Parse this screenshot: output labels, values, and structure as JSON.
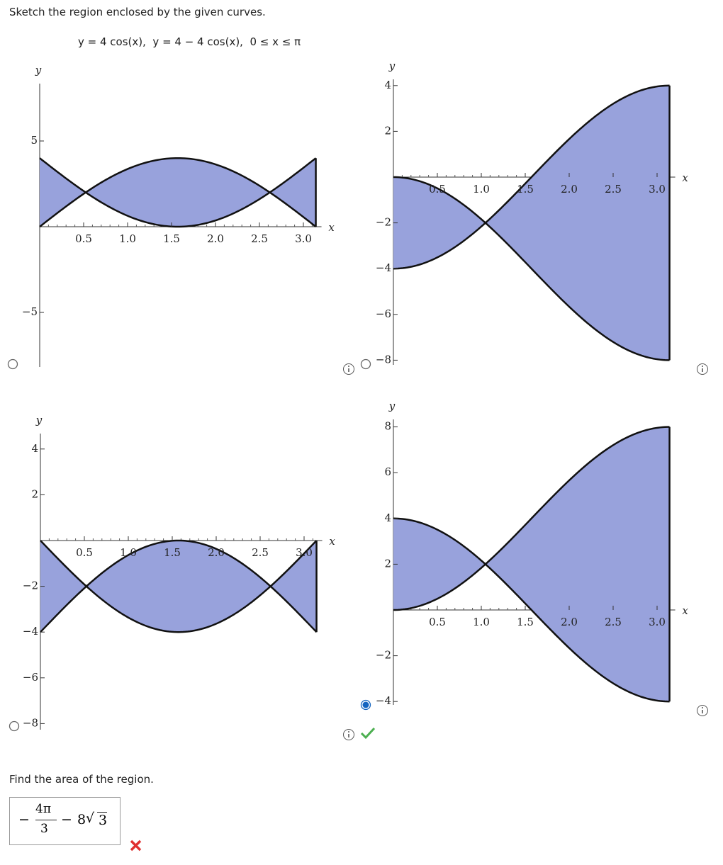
{
  "prompt": "Sketch the region enclosed by the given curves.",
  "equations": "y = 4 cos(x),  y = 4 − 4 cos(x),  0 ≤ x ≤ π",
  "graphs": [
    {
      "y_label": "y",
      "x_label": "x",
      "selected": false,
      "xticks": [
        0.5,
        {
          "value": 1,
          "label": "1.0"
        },
        1.5,
        {
          "value": 2,
          "label": "2.0"
        },
        2.5,
        {
          "value": 3,
          "label": "3.0"
        }
      ],
      "yticks": [
        5,
        {
          "value": -5,
          "label": "−5"
        }
      ]
    },
    {
      "y_label": "y",
      "x_label": "x",
      "selected": false,
      "xticks": [
        0.5,
        {
          "value": 1,
          "label": "1.0"
        },
        1.5,
        {
          "value": 2,
          "label": "2.0"
        },
        2.5,
        {
          "value": 3,
          "label": "3.0"
        }
      ],
      "yticks": [
        4,
        2,
        {
          "value": -2,
          "label": "−2"
        },
        {
          "value": -4,
          "label": "−4"
        },
        {
          "value": -6,
          "label": "−6"
        },
        {
          "value": -8,
          "label": "−8"
        }
      ]
    },
    {
      "y_label": "y",
      "x_label": "x",
      "selected": false,
      "xticks": [
        0.5,
        {
          "value": 1,
          "label": "1.0"
        },
        1.5,
        {
          "value": 2,
          "label": "2.0"
        },
        2.5,
        {
          "value": 3,
          "label": "3.0"
        }
      ],
      "yticks": [
        4,
        2,
        {
          "value": -2,
          "label": "−2"
        },
        {
          "value": -4,
          "label": "−4"
        },
        {
          "value": -6,
          "label": "−6"
        },
        {
          "value": -8,
          "label": "−8"
        }
      ]
    },
    {
      "y_label": "y",
      "x_label": "x",
      "selected": true,
      "xticks": [
        0.5,
        {
          "value": 1,
          "label": "1.0"
        },
        1.5,
        {
          "value": 2,
          "label": "2.0"
        },
        2.5,
        {
          "value": 3,
          "label": "3.0"
        }
      ],
      "yticks": [
        8,
        6,
        4,
        2,
        {
          "value": -2,
          "label": "−2"
        },
        {
          "value": -4,
          "label": "−4"
        }
      ]
    }
  ],
  "question": "Find the area of the region.",
  "answer": {
    "sign": "−",
    "numerator": "4π",
    "denominator": "3",
    "operator": "−",
    "coefficient": "8",
    "radicand": "3"
  }
}
